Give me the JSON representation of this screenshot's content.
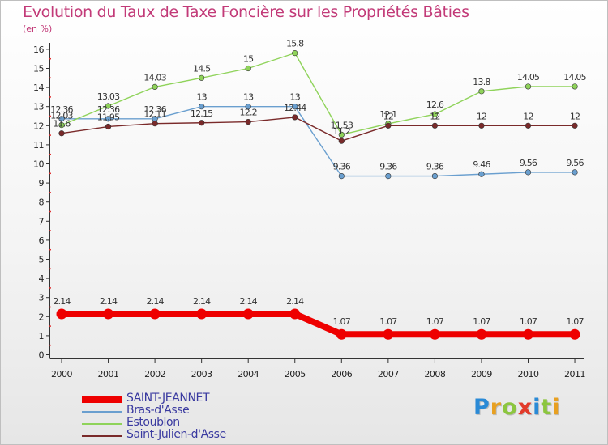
{
  "title": "Evolution du Taux de Taxe Foncière sur les Propriétés Bâties",
  "subtitle": "(en %)",
  "logo": {
    "text": "Proxiti",
    "letters": [
      "P",
      "r",
      "o",
      "x",
      "i",
      "t",
      "i"
    ],
    "colors": [
      "#2a8ad6",
      "#e8a020",
      "#8cc63f",
      "#e23a2a",
      "#2a8ad6",
      "#8cc63f",
      "#e8a020"
    ]
  },
  "chart_data": {
    "type": "line",
    "title": "Evolution du Taux de Taxe Foncière sur les Propriétés Bâties",
    "ylabel": "(en %)",
    "xlabel": "",
    "x": [
      "2000",
      "2001",
      "2002",
      "2003",
      "2004",
      "2005",
      "2006",
      "2007",
      "2008",
      "2009",
      "2010",
      "2011"
    ],
    "ylim": [
      0,
      16
    ],
    "yticks": [
      "0",
      "1",
      "2",
      "3",
      "4",
      "5",
      "6",
      "7",
      "8",
      "9",
      "10",
      "11",
      "12",
      "13",
      "14",
      "15",
      "16"
    ],
    "grid": false,
    "legend_position": "bottom-left",
    "series": [
      {
        "name": "SAINT-JEANNET",
        "color": "#ee0000",
        "values": [
          2.14,
          2.14,
          2.14,
          2.14,
          2.14,
          2.14,
          1.07,
          1.07,
          1.07,
          1.07,
          1.07,
          1.07
        ],
        "labels": [
          "2.14",
          "2.14",
          "2.14",
          "2.14",
          "2.14",
          "2.14",
          "1.07",
          "1.07",
          "1.07",
          "1.07",
          "1.07",
          "1.07"
        ]
      },
      {
        "name": "Bras-d'Asse",
        "color": "#6a9fcf",
        "values": [
          12.36,
          12.36,
          12.36,
          13,
          13,
          13,
          9.36,
          9.36,
          9.36,
          9.46,
          9.56,
          9.56
        ],
        "labels": [
          "12.36",
          "12.36",
          "12.36",
          "13",
          "13",
          "13",
          "9.36",
          "9.36",
          "9.36",
          "9.46",
          "9.56",
          "9.56"
        ]
      },
      {
        "name": "Estoublon",
        "color": "#8fd35a",
        "values": [
          12.03,
          13.03,
          14.03,
          14.5,
          15,
          15.8,
          11.53,
          12.1,
          12.6,
          13.8,
          14.05,
          14.05
        ],
        "labels": [
          "12.03",
          "13.03",
          "14.03",
          "14.5",
          "15",
          "15.8",
          "11.53",
          "12.1",
          "12.6",
          "13.8",
          "14.05",
          "14.05"
        ]
      },
      {
        "name": "Saint-Julien-d'Asse",
        "color": "#7a2a2a",
        "values": [
          11.6,
          11.95,
          12.11,
          12.15,
          12.2,
          12.44,
          11.2,
          12,
          12,
          12,
          12,
          12
        ],
        "labels": [
          "11.6",
          "11.95",
          "12.11",
          "12.15",
          "12.2",
          "12.44",
          "11.2",
          "12",
          "12",
          "12",
          "12",
          "12"
        ]
      }
    ]
  }
}
